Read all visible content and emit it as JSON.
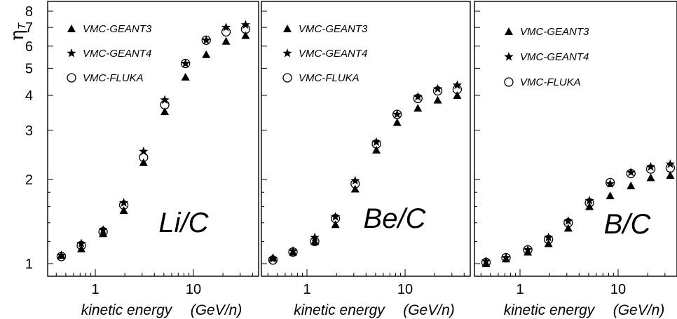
{
  "figure": {
    "ylabel": "η",
    "ylabel_sub": "T",
    "y_tick_labels": [
      "1",
      "2",
      "3",
      "4",
      "5",
      "6",
      "7",
      "8"
    ],
    "x_tick_labels": [
      "1",
      "10"
    ],
    "xlabel": "kinetic energy",
    "xlabel_unit": "(GeV/n)"
  },
  "chart_data": [
    {
      "type": "scatter",
      "panel_label": "Li/C",
      "x_scale": "log",
      "y_scale": "log",
      "xlim": [
        0.3,
        40
      ],
      "ylim": [
        0.95,
        8.5
      ],
      "legend_placement": "top-left",
      "series": [
        {
          "name": "VMC-GEANT3",
          "marker": "triangle",
          "x": [
            0.45,
            0.72,
            1.2,
            1.95,
            3.1,
            5.1,
            8.3,
            13.5,
            21.5,
            34
          ],
          "y": [
            1.07,
            1.13,
            1.28,
            1.55,
            2.3,
            3.5,
            4.65,
            5.6,
            6.25,
            6.55
          ]
        },
        {
          "name": "VMC-GEANT4",
          "marker": "star",
          "x": [
            0.45,
            0.72,
            1.2,
            1.95,
            3.1,
            5.1,
            8.3,
            13.5,
            21.5,
            34
          ],
          "y": [
            1.07,
            1.18,
            1.32,
            1.65,
            2.52,
            3.85,
            5.2,
            6.3,
            7.0,
            7.15
          ]
        },
        {
          "name": "VMC-FLUKA",
          "marker": "circle",
          "x": [
            0.45,
            0.72,
            1.2,
            1.95,
            3.1,
            5.1,
            8.3,
            13.5,
            21.5,
            34
          ],
          "y": [
            1.06,
            1.16,
            1.3,
            1.62,
            2.4,
            3.7,
            5.2,
            6.3,
            6.75,
            6.9
          ]
        }
      ]
    },
    {
      "type": "scatter",
      "panel_label": "Be/C",
      "x_scale": "log",
      "y_scale": "log",
      "xlim": [
        0.3,
        40
      ],
      "ylim": [
        0.95,
        8.5
      ],
      "legend_placement": "top-left",
      "series": [
        {
          "name": "VMC-GEANT3",
          "marker": "triangle",
          "x": [
            0.45,
            0.72,
            1.2,
            1.95,
            3.1,
            5.1,
            8.3,
            13.5,
            21.5,
            34
          ],
          "y": [
            1.05,
            1.1,
            1.2,
            1.38,
            1.85,
            2.55,
            3.2,
            3.6,
            3.85,
            4.0
          ]
        },
        {
          "name": "VMC-GEANT4",
          "marker": "star",
          "x": [
            0.45,
            0.72,
            1.2,
            1.95,
            3.1,
            5.1,
            8.3,
            13.5,
            21.5,
            34
          ],
          "y": [
            1.04,
            1.11,
            1.24,
            1.47,
            1.98,
            2.72,
            3.42,
            3.95,
            4.22,
            4.35
          ]
        },
        {
          "name": "VMC-FLUKA",
          "marker": "circle",
          "x": [
            0.45,
            0.72,
            1.2,
            1.95,
            3.1,
            5.1,
            8.3,
            13.5,
            21.5,
            34
          ],
          "y": [
            1.03,
            1.1,
            1.2,
            1.45,
            1.93,
            2.68,
            3.42,
            3.9,
            4.15,
            4.2
          ]
        }
      ]
    },
    {
      "type": "scatter",
      "panel_label": "B/C",
      "x_scale": "log",
      "y_scale": "log",
      "xlim": [
        0.3,
        40
      ],
      "ylim": [
        0.95,
        8.5
      ],
      "legend_placement": "top-left",
      "series": [
        {
          "name": "VMC-GEANT3",
          "marker": "triangle",
          "x": [
            0.45,
            0.72,
            1.2,
            1.95,
            3.1,
            5.1,
            8.3,
            13.5,
            21.5,
            34
          ],
          "y": [
            1.0,
            1.04,
            1.1,
            1.18,
            1.34,
            1.6,
            1.75,
            1.9,
            2.03,
            2.07
          ]
        },
        {
          "name": "VMC-GEANT4",
          "marker": "star",
          "x": [
            0.45,
            0.72,
            1.2,
            1.95,
            3.1,
            5.1,
            8.3,
            13.5,
            21.5,
            34
          ],
          "y": [
            1.02,
            1.05,
            1.12,
            1.24,
            1.42,
            1.68,
            1.93,
            2.12,
            2.22,
            2.27
          ]
        },
        {
          "name": "VMC-FLUKA",
          "marker": "circle",
          "x": [
            0.45,
            0.72,
            1.2,
            1.95,
            3.1,
            5.1,
            8.3,
            13.5,
            21.5,
            34
          ],
          "y": [
            1.01,
            1.05,
            1.12,
            1.22,
            1.4,
            1.65,
            1.95,
            2.1,
            2.18,
            2.2
          ]
        }
      ]
    }
  ]
}
